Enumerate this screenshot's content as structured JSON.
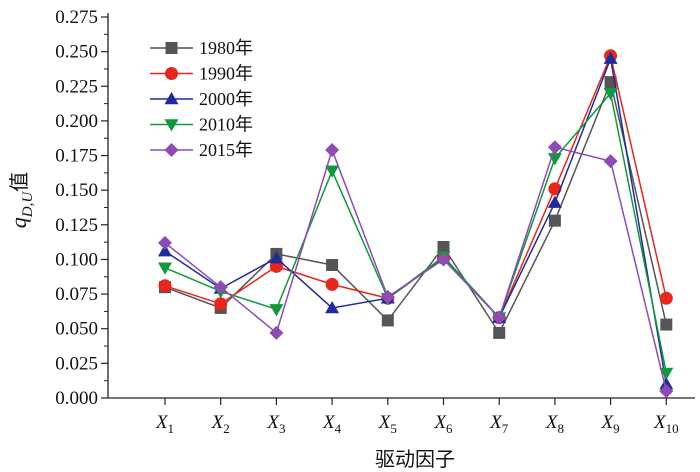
{
  "chart_data": {
    "type": "line",
    "categories": [
      {
        "base": "X",
        "sub": "1"
      },
      {
        "base": "X",
        "sub": "2"
      },
      {
        "base": "X",
        "sub": "3"
      },
      {
        "base": "X",
        "sub": "4"
      },
      {
        "base": "X",
        "sub": "5"
      },
      {
        "base": "X",
        "sub": "6"
      },
      {
        "base": "X",
        "sub": "7"
      },
      {
        "base": "X",
        "sub": "8"
      },
      {
        "base": "X",
        "sub": "9"
      },
      {
        "base": "X",
        "sub": "10"
      }
    ],
    "xlabel": "驱动因子",
    "ylabel": {
      "q": "q",
      "sub": "D,U",
      "suffix": "值"
    },
    "ylim": [
      0,
      0.275
    ],
    "yticks": [
      0.0,
      0.025,
      0.05,
      0.075,
      0.1,
      0.125,
      0.15,
      0.175,
      0.2,
      0.225,
      0.25,
      0.275
    ],
    "ytick_labels": [
      "0.000",
      "0.025",
      "0.050",
      "0.075",
      "0.100",
      "0.125",
      "0.150",
      "0.175",
      "0.200",
      "0.225",
      "0.250",
      "0.275"
    ],
    "grid": false,
    "legend_position": "top-left",
    "series": [
      {
        "name": "1980年",
        "color": "#555555",
        "marker": "square",
        "values": [
          0.08,
          0.065,
          0.104,
          0.096,
          0.056,
          0.109,
          0.047,
          0.128,
          0.228,
          0.053
        ]
      },
      {
        "name": "1990年",
        "color": "#e8261c",
        "marker": "circle",
        "values": [
          0.081,
          0.068,
          0.095,
          0.082,
          0.072,
          0.101,
          0.058,
          0.151,
          0.247,
          0.072
        ]
      },
      {
        "name": "2000年",
        "color": "#1f2c9e",
        "marker": "triangle-up",
        "values": [
          0.106,
          0.079,
          0.101,
          0.065,
          0.072,
          0.101,
          0.058,
          0.141,
          0.245,
          0.01
        ]
      },
      {
        "name": "2010年",
        "color": "#0e9a3a",
        "marker": "triangle-down",
        "values": [
          0.094,
          0.077,
          0.064,
          0.164,
          0.072,
          0.102,
          0.058,
          0.173,
          0.22,
          0.018
        ]
      },
      {
        "name": "2015年",
        "color": "#8e4bb5",
        "marker": "diamond",
        "values": [
          0.112,
          0.08,
          0.047,
          0.179,
          0.073,
          0.1,
          0.058,
          0.181,
          0.171,
          0.005
        ]
      }
    ]
  }
}
